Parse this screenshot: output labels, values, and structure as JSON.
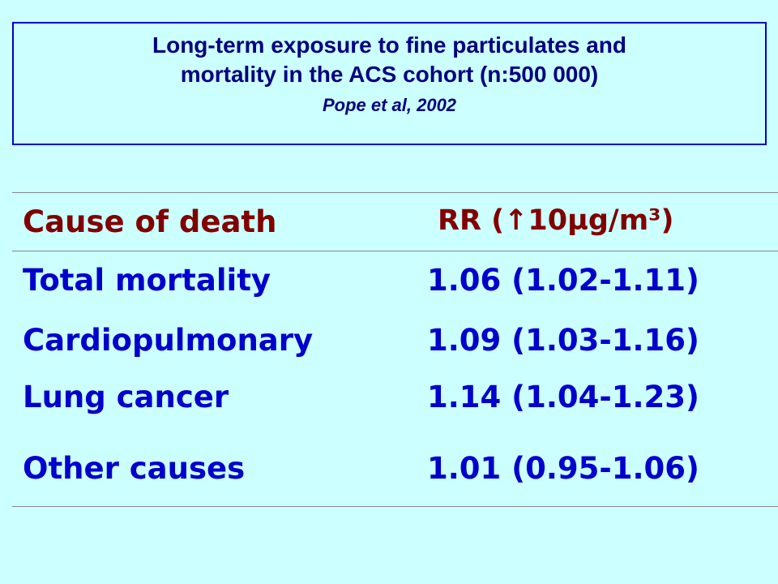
{
  "header": {
    "title_lines": [
      "Long-term exposure to fine particulates and",
      "mortality in the ACS cohort (n:500 000)"
    ],
    "citation": "Pope et al, 2002"
  },
  "table": {
    "columns": [
      "Cause of death",
      "RR (↑10µg/m³)"
    ],
    "rows": [
      [
        "Total mortality",
        "1.06 (1.02-1.11)"
      ],
      [
        "Cardiopulmonary",
        "1.09 (1.03-1.16)"
      ],
      [
        "Lung cancer",
        "1.14 (1.04-1.23)"
      ],
      [
        "Other causes",
        "1.01 (0.95-1.06)"
      ]
    ]
  }
}
